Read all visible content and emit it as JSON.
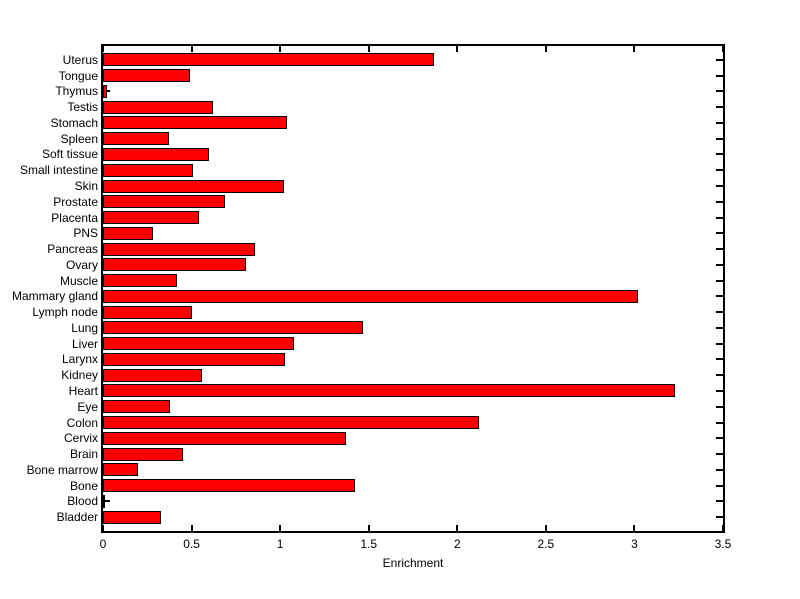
{
  "figure": {
    "background_color": "#ffffff",
    "axes_color": "#000000"
  },
  "chart_data": {
    "type": "bar",
    "orientation": "horizontal",
    "title": "",
    "xlabel": "Enrichment",
    "ylabel": "",
    "xlim": [
      0,
      3.5
    ],
    "xticks": [
      0,
      0.5,
      1,
      1.5,
      2,
      2.5,
      3,
      3.5
    ],
    "xtick_labels": [
      "0",
      "0.5",
      "1",
      "1.5",
      "2",
      "2.5",
      "3",
      "3.5"
    ],
    "grid": false,
    "legend": null,
    "bar_color": "#ff0000",
    "bar_edge_color": "#000000",
    "categories_top_to_bottom": [
      "Uterus",
      "Tongue",
      "Thymus",
      "Testis",
      "Stomach",
      "Spleen",
      "Soft tissue",
      "Small intestine",
      "Skin",
      "Prostate",
      "Placenta",
      "PNS",
      "Pancreas",
      "Ovary",
      "Muscle",
      "Mammary gland",
      "Lymph node",
      "Lung",
      "Liver",
      "Larynx",
      "Kidney",
      "Heart",
      "Eye",
      "Colon",
      "Cervix",
      "Brain",
      "Bone marrow",
      "Bone",
      "Blood",
      "Bladder"
    ],
    "values": [
      1.87,
      0.49,
      0.02,
      0.62,
      1.04,
      0.37,
      0.6,
      0.51,
      1.02,
      0.69,
      0.54,
      0.28,
      0.86,
      0.81,
      0.42,
      3.02,
      0.5,
      1.47,
      1.08,
      1.03,
      0.56,
      3.23,
      0.38,
      2.12,
      1.37,
      0.45,
      0.2,
      1.42,
      0.01,
      0.33
    ]
  }
}
